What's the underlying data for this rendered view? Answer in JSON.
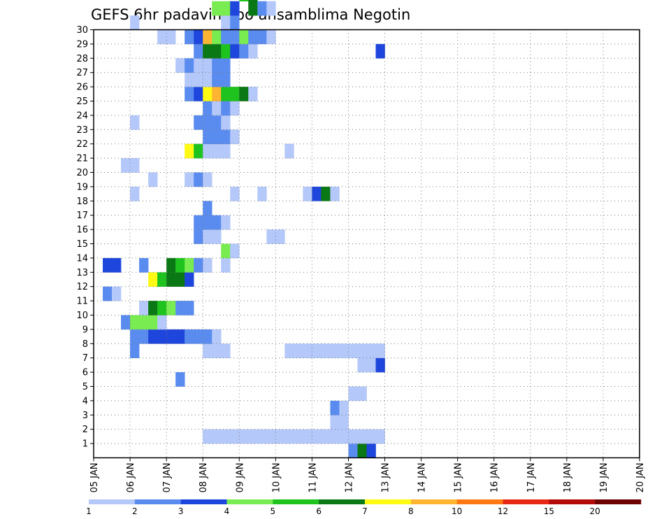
{
  "chart_data": {
    "type": "heatmap",
    "title": "GEFS 6hr padavine po ansamblima Negotin",
    "xlabel": "",
    "ylabel": "",
    "x_ticks": [
      "05 JAN",
      "06 JAN",
      "07 JAN",
      "08 JAN",
      "09 JAN",
      "10 JAN",
      "11 JAN",
      "12 JAN",
      "13 JAN",
      "14 JAN",
      "15 JAN",
      "16 JAN",
      "17 JAN",
      "18 JAN",
      "19 JAN",
      "20 JAN"
    ],
    "y_ticks": [
      "1",
      "2",
      "3",
      "4",
      "5",
      "6",
      "7",
      "8",
      "9",
      "10",
      "11",
      "12",
      "13",
      "14",
      "15",
      "16",
      "17",
      "18",
      "19",
      "20",
      "21",
      "22",
      "23",
      "24",
      "25",
      "26",
      "27",
      "28",
      "29",
      "30"
    ],
    "x_range": [
      "05 JAN 00",
      "20 JAN 00"
    ],
    "x_step_hours": 6,
    "y_range": [
      0,
      30
    ],
    "grid": true,
    "colorbar": {
      "labels": [
        "1",
        "2",
        "3",
        "4",
        "5",
        "6",
        "7",
        "8",
        "10",
        "12",
        "15",
        "20"
      ],
      "colors": [
        "#b4c8fa",
        "#5a8cf0",
        "#1e46dc",
        "#78ec50",
        "#1ec31e",
        "#0a7814",
        "#fffa14",
        "#ffb432",
        "#ff7814",
        "#e62814",
        "#b40a0a",
        "#6e0000"
      ]
    },
    "cells": [
      {
        "m": 0,
        "s": 28,
        "c": 2
      },
      {
        "m": 0,
        "s": 29,
        "c": 6
      },
      {
        "m": 0,
        "s": 30,
        "c": 3
      },
      {
        "m": 1,
        "s": 12,
        "c": 1
      },
      {
        "m": 1,
        "s": 13,
        "c": 1
      },
      {
        "m": 1,
        "s": 14,
        "c": 1
      },
      {
        "m": 1,
        "s": 15,
        "c": 1
      },
      {
        "m": 1,
        "s": 16,
        "c": 1
      },
      {
        "m": 1,
        "s": 17,
        "c": 1
      },
      {
        "m": 1,
        "s": 18,
        "c": 1
      },
      {
        "m": 1,
        "s": 19,
        "c": 1
      },
      {
        "m": 1,
        "s": 20,
        "c": 1
      },
      {
        "m": 1,
        "s": 21,
        "c": 1
      },
      {
        "m": 1,
        "s": 22,
        "c": 1
      },
      {
        "m": 1,
        "s": 23,
        "c": 1
      },
      {
        "m": 1,
        "s": 24,
        "c": 1
      },
      {
        "m": 1,
        "s": 25,
        "c": 1
      },
      {
        "m": 1,
        "s": 26,
        "c": 1
      },
      {
        "m": 1,
        "s": 27,
        "c": 1
      },
      {
        "m": 1,
        "s": 28,
        "c": 1
      },
      {
        "m": 1,
        "s": 29,
        "c": 1
      },
      {
        "m": 1,
        "s": 30,
        "c": 1
      },
      {
        "m": 1,
        "s": 31,
        "c": 1
      },
      {
        "m": 2,
        "s": 26,
        "c": 1
      },
      {
        "m": 2,
        "s": 27,
        "c": 1
      },
      {
        "m": 3,
        "s": 26,
        "c": 2
      },
      {
        "m": 3,
        "s": 27,
        "c": 1
      },
      {
        "m": 4,
        "s": 28,
        "c": 1
      },
      {
        "m": 4,
        "s": 29,
        "c": 1
      },
      {
        "m": 5,
        "s": 9,
        "c": 2
      },
      {
        "m": 6,
        "s": 29,
        "c": 1
      },
      {
        "m": 6,
        "s": 30,
        "c": 1
      },
      {
        "m": 6,
        "s": 31,
        "c": 3
      },
      {
        "m": 7,
        "s": 4,
        "c": 2
      },
      {
        "m": 7,
        "s": 12,
        "c": 1
      },
      {
        "m": 7,
        "s": 13,
        "c": 1
      },
      {
        "m": 7,
        "s": 14,
        "c": 1
      },
      {
        "m": 7,
        "s": 21,
        "c": 1
      },
      {
        "m": 7,
        "s": 22,
        "c": 1
      },
      {
        "m": 7,
        "s": 23,
        "c": 1
      },
      {
        "m": 7,
        "s": 24,
        "c": 1
      },
      {
        "m": 7,
        "s": 25,
        "c": 1
      },
      {
        "m": 7,
        "s": 26,
        "c": 1
      },
      {
        "m": 7,
        "s": 27,
        "c": 1
      },
      {
        "m": 7,
        "s": 28,
        "c": 1
      },
      {
        "m": 7,
        "s": 29,
        "c": 1
      },
      {
        "m": 7,
        "s": 30,
        "c": 1
      },
      {
        "m": 7,
        "s": 31,
        "c": 1
      },
      {
        "m": 8,
        "s": 4,
        "c": 2
      },
      {
        "m": 8,
        "s": 5,
        "c": 2
      },
      {
        "m": 8,
        "s": 6,
        "c": 3
      },
      {
        "m": 8,
        "s": 7,
        "c": 3
      },
      {
        "m": 8,
        "s": 8,
        "c": 3
      },
      {
        "m": 8,
        "s": 9,
        "c": 3
      },
      {
        "m": 8,
        "s": 10,
        "c": 2
      },
      {
        "m": 8,
        "s": 11,
        "c": 2
      },
      {
        "m": 8,
        "s": 12,
        "c": 2
      },
      {
        "m": 8,
        "s": 13,
        "c": 1
      },
      {
        "m": 9,
        "s": 3,
        "c": 2
      },
      {
        "m": 9,
        "s": 4,
        "c": 4
      },
      {
        "m": 9,
        "s": 5,
        "c": 4
      },
      {
        "m": 9,
        "s": 6,
        "c": 4
      },
      {
        "m": 9,
        "s": 7,
        "c": 1
      },
      {
        "m": 10,
        "s": 5,
        "c": 1
      },
      {
        "m": 10,
        "s": 6,
        "c": 6
      },
      {
        "m": 10,
        "s": 7,
        "c": 5
      },
      {
        "m": 10,
        "s": 8,
        "c": 4
      },
      {
        "m": 10,
        "s": 9,
        "c": 2
      },
      {
        "m": 10,
        "s": 10,
        "c": 2
      },
      {
        "m": 11,
        "s": 1,
        "c": 2
      },
      {
        "m": 11,
        "s": 2,
        "c": 1
      },
      {
        "m": 12,
        "s": 6,
        "c": 7
      },
      {
        "m": 12,
        "s": 7,
        "c": 5
      },
      {
        "m": 12,
        "s": 8,
        "c": 6
      },
      {
        "m": 12,
        "s": 9,
        "c": 6
      },
      {
        "m": 12,
        "s": 10,
        "c": 3
      },
      {
        "m": 13,
        "s": 1,
        "c": 3
      },
      {
        "m": 13,
        "s": 2,
        "c": 3
      },
      {
        "m": 13,
        "s": 5,
        "c": 2
      },
      {
        "m": 13,
        "s": 8,
        "c": 6
      },
      {
        "m": 13,
        "s": 9,
        "c": 5
      },
      {
        "m": 13,
        "s": 10,
        "c": 4
      },
      {
        "m": 13,
        "s": 11,
        "c": 2
      },
      {
        "m": 13,
        "s": 12,
        "c": 1
      },
      {
        "m": 13,
        "s": 14,
        "c": 1
      },
      {
        "m": 14,
        "s": 14,
        "c": 4
      },
      {
        "m": 14,
        "s": 15,
        "c": 1
      },
      {
        "m": 15,
        "s": 11,
        "c": 2
      },
      {
        "m": 15,
        "s": 12,
        "c": 1
      },
      {
        "m": 15,
        "s": 13,
        "c": 1
      },
      {
        "m": 15,
        "s": 19,
        "c": 1
      },
      {
        "m": 15,
        "s": 20,
        "c": 1
      },
      {
        "m": 16,
        "s": 11,
        "c": 2
      },
      {
        "m": 16,
        "s": 12,
        "c": 2
      },
      {
        "m": 16,
        "s": 13,
        "c": 2
      },
      {
        "m": 16,
        "s": 14,
        "c": 1
      },
      {
        "m": 17,
        "s": 12,
        "c": 2
      },
      {
        "m": 18,
        "s": 4,
        "c": 1
      },
      {
        "m": 18,
        "s": 15,
        "c": 1
      },
      {
        "m": 18,
        "s": 18,
        "c": 1
      },
      {
        "m": 18,
        "s": 23,
        "c": 1
      },
      {
        "m": 18,
        "s": 24,
        "c": 3
      },
      {
        "m": 18,
        "s": 25,
        "c": 6
      },
      {
        "m": 18,
        "s": 26,
        "c": 1
      },
      {
        "m": 19,
        "s": 6,
        "c": 1
      },
      {
        "m": 19,
        "s": 10,
        "c": 1
      },
      {
        "m": 19,
        "s": 11,
        "c": 2
      },
      {
        "m": 19,
        "s": 12,
        "c": 1
      },
      {
        "m": 20,
        "s": 3,
        "c": 1
      },
      {
        "m": 20,
        "s": 4,
        "c": 1
      },
      {
        "m": 21,
        "s": 10,
        "c": 7
      },
      {
        "m": 21,
        "s": 11,
        "c": 5
      },
      {
        "m": 21,
        "s": 12,
        "c": 1
      },
      {
        "m": 21,
        "s": 13,
        "c": 1
      },
      {
        "m": 21,
        "s": 14,
        "c": 1
      },
      {
        "m": 21,
        "s": 21,
        "c": 1
      },
      {
        "m": 22,
        "s": 12,
        "c": 2
      },
      {
        "m": 22,
        "s": 13,
        "c": 2
      },
      {
        "m": 22,
        "s": 14,
        "c": 2
      },
      {
        "m": 22,
        "s": 15,
        "c": 1
      },
      {
        "m": 23,
        "s": 4,
        "c": 1
      },
      {
        "m": 23,
        "s": 11,
        "c": 2
      },
      {
        "m": 23,
        "s": 12,
        "c": 2
      },
      {
        "m": 23,
        "s": 13,
        "c": 2
      },
      {
        "m": 23,
        "s": 14,
        "c": 1
      },
      {
        "m": 24,
        "s": 12,
        "c": 2
      },
      {
        "m": 24,
        "s": 13,
        "c": 1
      },
      {
        "m": 24,
        "s": 14,
        "c": 2
      },
      {
        "m": 24,
        "s": 15,
        "c": 1
      },
      {
        "m": 25,
        "s": 10,
        "c": 2
      },
      {
        "m": 25,
        "s": 11,
        "c": 3
      },
      {
        "m": 25,
        "s": 12,
        "c": 7
      },
      {
        "m": 25,
        "s": 13,
        "c": 8
      },
      {
        "m": 25,
        "s": 14,
        "c": 5
      },
      {
        "m": 25,
        "s": 15,
        "c": 5
      },
      {
        "m": 25,
        "s": 16,
        "c": 6
      },
      {
        "m": 25,
        "s": 17,
        "c": 1
      },
      {
        "m": 26,
        "s": 10,
        "c": 1
      },
      {
        "m": 26,
        "s": 11,
        "c": 1
      },
      {
        "m": 26,
        "s": 12,
        "c": 1
      },
      {
        "m": 26,
        "s": 13,
        "c": 2
      },
      {
        "m": 26,
        "s": 14,
        "c": 2
      },
      {
        "m": 27,
        "s": 9,
        "c": 1
      },
      {
        "m": 27,
        "s": 10,
        "c": 2
      },
      {
        "m": 27,
        "s": 11,
        "c": 1
      },
      {
        "m": 27,
        "s": 12,
        "c": 1
      },
      {
        "m": 27,
        "s": 13,
        "c": 2
      },
      {
        "m": 27,
        "s": 14,
        "c": 2
      },
      {
        "m": 28,
        "s": 11,
        "c": 2
      },
      {
        "m": 28,
        "s": 12,
        "c": 6
      },
      {
        "m": 28,
        "s": 13,
        "c": 6
      },
      {
        "m": 28,
        "s": 14,
        "c": 5
      },
      {
        "m": 28,
        "s": 15,
        "c": 3
      },
      {
        "m": 28,
        "s": 16,
        "c": 2
      },
      {
        "m": 28,
        "s": 17,
        "c": 1
      },
      {
        "m": 28,
        "s": 31,
        "c": 3
      },
      {
        "m": 29,
        "s": 7,
        "c": 1
      },
      {
        "m": 29,
        "s": 8,
        "c": 1
      },
      {
        "m": 29,
        "s": 10,
        "c": 2
      },
      {
        "m": 29,
        "s": 11,
        "c": 3
      },
      {
        "m": 29,
        "s": 12,
        "c": 8
      },
      {
        "m": 29,
        "s": 13,
        "c": 4
      },
      {
        "m": 29,
        "s": 14,
        "c": 2
      },
      {
        "m": 29,
        "s": 15,
        "c": 2
      },
      {
        "m": 29,
        "s": 16,
        "c": 4
      },
      {
        "m": 29,
        "s": 17,
        "c": 2
      },
      {
        "m": 29,
        "s": 18,
        "c": 2
      },
      {
        "m": 29,
        "s": 19,
        "c": 1
      },
      {
        "m": 30,
        "s": 4,
        "c": 1
      },
      {
        "m": 30,
        "s": 14,
        "c": 1
      },
      {
        "m": 30,
        "s": 15,
        "c": 2
      },
      {
        "m": 31,
        "s": 13,
        "c": 4
      },
      {
        "m": 31,
        "s": 14,
        "c": 4
      },
      {
        "m": 31,
        "s": 15,
        "c": 3
      },
      {
        "m": 31,
        "s": 17,
        "c": 6
      },
      {
        "m": 31,
        "s": 18,
        "c": 2
      },
      {
        "m": 31,
        "s": 19,
        "c": 1
      },
      {
        "m": 32,
        "s": 16,
        "c": 5
      },
      {
        "m": 32,
        "s": 17,
        "c": 6
      },
      {
        "m": 33,
        "s": 9,
        "c": 1
      },
      {
        "m": 33,
        "s": 10,
        "c": 4
      },
      {
        "m": 33,
        "s": 15,
        "c": 1
      },
      {
        "m": 33,
        "s": 16,
        "c": 6
      },
      {
        "m": 33,
        "s": 18,
        "c": 2
      },
      {
        "m": 33,
        "s": 19,
        "c": 1
      },
      {
        "m": 34,
        "s": 6,
        "c": 1
      },
      {
        "m": 34,
        "s": 7,
        "c": 1
      },
      {
        "m": 34,
        "s": 8,
        "c": 1
      },
      {
        "m": 34,
        "s": 16,
        "c": 2
      },
      {
        "m": 34,
        "s": 17,
        "c": 1
      },
      {
        "m": 35,
        "s": 14,
        "c": 2
      },
      {
        "m": 35,
        "s": 17,
        "c": 1
      },
      {
        "m": 35,
        "s": 20,
        "c": 5
      },
      {
        "m": 35,
        "s": 21,
        "c": 1
      }
    ]
  }
}
